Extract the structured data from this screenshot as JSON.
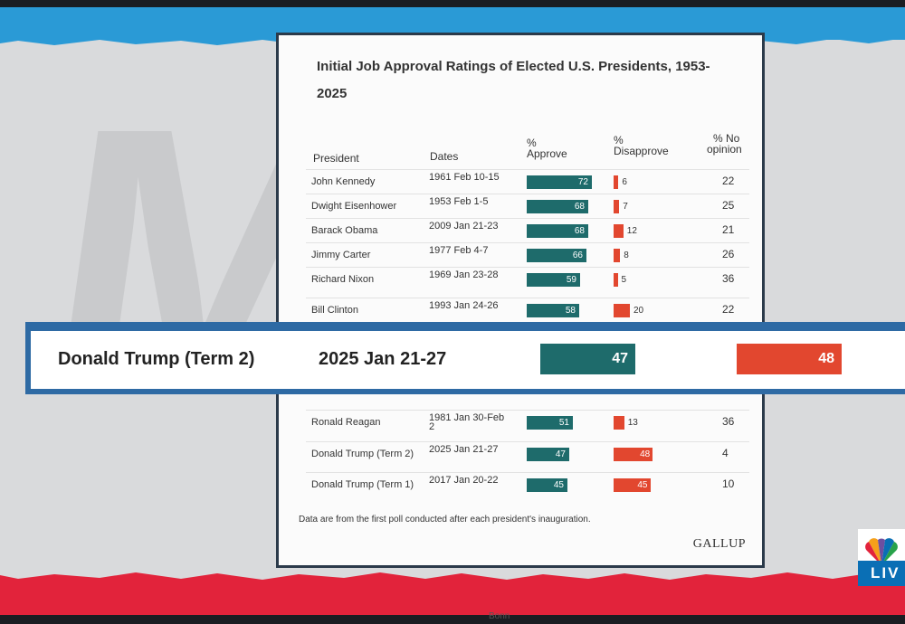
{
  "chart_data": {
    "type": "table",
    "title": "Initial Job Approval Ratings of Elected U.S. Presidents, 1953-2025",
    "columns": [
      "President",
      "Dates",
      "% Approve",
      "% Disapprove",
      "% No opinion"
    ],
    "headers": {
      "president": "President",
      "dates": "Dates",
      "approve": "% Approve",
      "approve_pct": "%",
      "approve_word": "Approve",
      "disapprove_pct": "%",
      "disapprove_word": "Disapprove",
      "noop_pct": "% No",
      "noop_word": "opinion"
    },
    "rows": [
      {
        "president": "John Kennedy",
        "dates": "1961 Feb 10-15",
        "approve": 72,
        "disapprove": 6,
        "no_opinion": 22
      },
      {
        "president": "Dwight Eisenhower",
        "dates": "1953 Feb 1-5",
        "approve": 68,
        "disapprove": 7,
        "no_opinion": 25
      },
      {
        "president": "Barack Obama",
        "dates": "2009 Jan 21-23",
        "approve": 68,
        "disapprove": 12,
        "no_opinion": 21
      },
      {
        "president": "Jimmy Carter",
        "dates": "1977 Feb 4-7",
        "approve": 66,
        "disapprove": 8,
        "no_opinion": 26
      },
      {
        "president": "Richard Nixon",
        "dates": "1969 Jan 23-28",
        "approve": 59,
        "disapprove": 5,
        "no_opinion": 36
      },
      {
        "president": "Bill Clinton",
        "dates": "1993 Jan 24-26",
        "approve": 58,
        "disapprove": 20,
        "no_opinion": 22
      },
      {
        "president": "Ronald Reagan",
        "dates": "1981 Jan 30-Feb 2",
        "approve": 51,
        "disapprove": 13,
        "no_opinion": 36
      },
      {
        "president": "Donald Trump (Term 2)",
        "dates": "2025 Jan 21-27",
        "approve": 47,
        "disapprove": 48,
        "no_opinion": 4
      },
      {
        "president": "Donald Trump (Term 1)",
        "dates": "2017 Jan 20-22",
        "approve": 45,
        "disapprove": 45,
        "no_opinion": 10
      }
    ],
    "footnote": "Data are from the first poll conducted after each president's inauguration.",
    "source": "GALLUP",
    "highlight": {
      "president": "Donald Trump (Term 2)",
      "dates": "2025 Jan 21-27",
      "approve": 47,
      "disapprove": 48
    },
    "colors": {
      "approve": "#1e6b6b",
      "disapprove": "#e2472f"
    }
  },
  "broadcast": {
    "live_label": "LIV",
    "bottom_caption": "Bonn"
  }
}
